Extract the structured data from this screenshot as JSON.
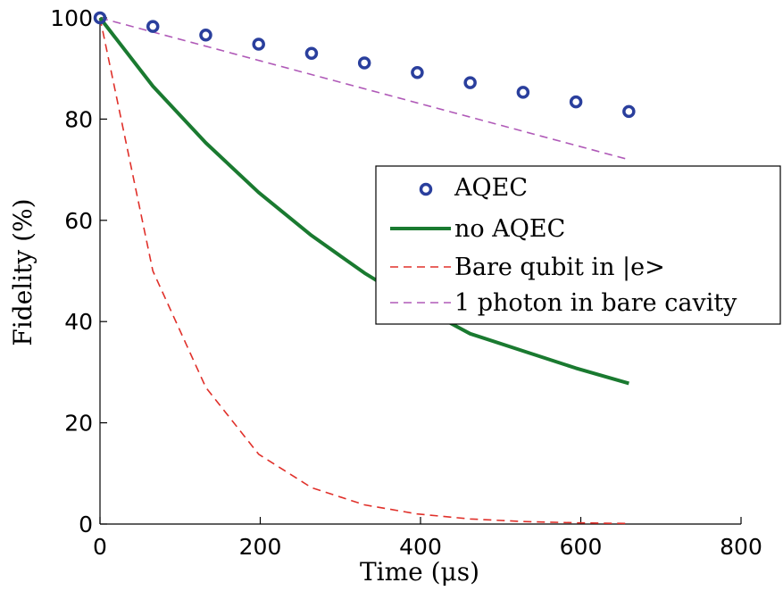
{
  "chart_data": {
    "type": "line",
    "xlabel": "Time (μs)",
    "ylabel": "Fidelity (%)",
    "xlim": [
      0,
      800
    ],
    "ylim": [
      0,
      100
    ],
    "xticks": [
      "0",
      "200",
      "400",
      "600",
      "800"
    ],
    "yticks": [
      "0",
      "20",
      "40",
      "60",
      "80",
      "100"
    ],
    "grid": false,
    "legend_position": "center-right",
    "series": [
      {
        "name": "AQEC",
        "style": "markers",
        "color": "#2a3f9d",
        "x": [
          0,
          66,
          132,
          198,
          264,
          330,
          396,
          462,
          528,
          594,
          660
        ],
        "y": [
          100,
          98.3,
          96.6,
          94.8,
          93.0,
          91.1,
          89.2,
          87.2,
          85.3,
          83.4,
          81.5
        ]
      },
      {
        "name": "no AQEC",
        "style": "solid",
        "color": "#1a7a30",
        "x": [
          0,
          66,
          132,
          198,
          264,
          330,
          396,
          462,
          528,
          594,
          660
        ],
        "y": [
          100,
          86.5,
          75.3,
          65.5,
          57.0,
          49.6,
          43.2,
          37.6,
          34.2,
          30.8,
          27.8
        ]
      },
      {
        "name": "Bare qubit in |e>",
        "style": "dashed",
        "color": "#e0302a",
        "x": [
          0,
          66,
          132,
          198,
          264,
          330,
          396,
          462,
          528,
          594,
          660
        ],
        "y": [
          100,
          50.0,
          27.0,
          13.8,
          7.2,
          3.8,
          2.0,
          1.0,
          0.5,
          0.25,
          0.1
        ]
      },
      {
        "name": "1 photon in bare cavity",
        "style": "dashed",
        "color": "#b05ab8",
        "x": [
          0,
          660
        ],
        "y": [
          100,
          72
        ]
      }
    ]
  }
}
